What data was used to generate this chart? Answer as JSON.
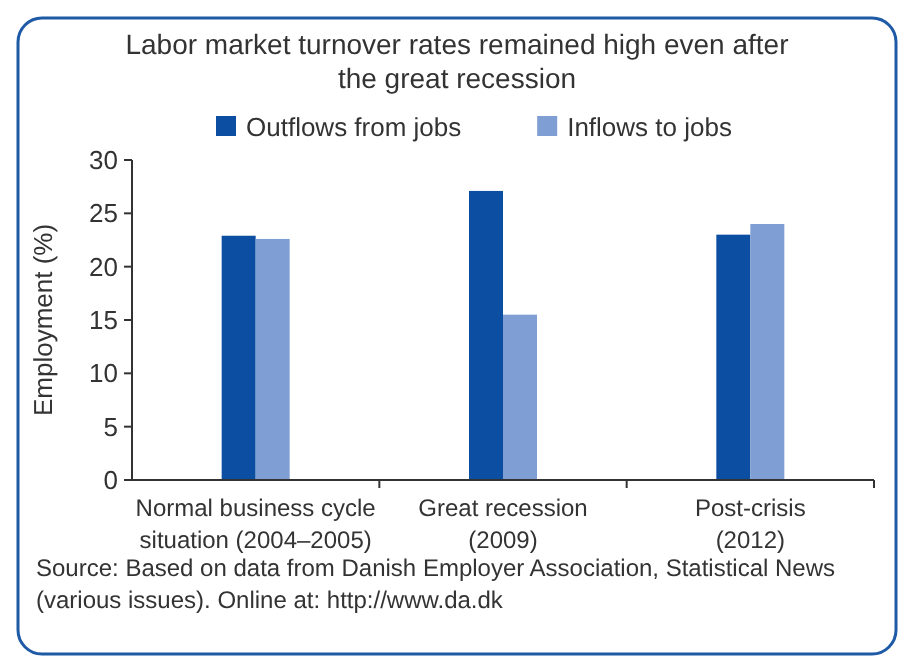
{
  "chart_data": {
    "type": "bar",
    "title": "Labor market turnover rates remained high even after\nthe great recession",
    "ylabel": "Employment (%)",
    "categories": [
      "Normal business cycle\nsituation (2004–2005)",
      "Great recession\n(2009)",
      "Post-crisis\n(2012)"
    ],
    "series": [
      {
        "name": "Outflows from jobs",
        "color": "#0b4ea2",
        "values": [
          22.9,
          27.1,
          23.0
        ]
      },
      {
        "name": "Inflows to jobs",
        "color": "#7f9fd4",
        "values": [
          22.6,
          15.5,
          24.0
        ]
      }
    ],
    "ylim": [
      0,
      30
    ],
    "yticks": [
      0,
      5,
      10,
      15,
      20,
      25,
      30
    ],
    "grid": false,
    "legend": "top",
    "annotations": [
      "Source: Based on data from Danish Employer Association, Statistical News (various issues). Online at: http://www.da.dk"
    ]
  }
}
